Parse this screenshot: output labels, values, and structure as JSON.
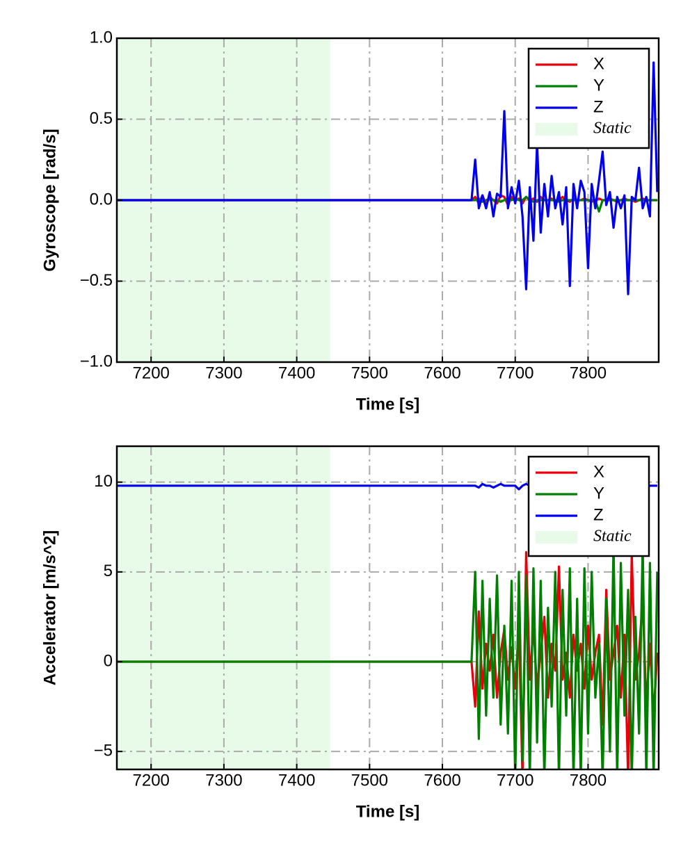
{
  "chart_data": [
    {
      "type": "line",
      "xlabel": "Time [s]",
      "ylabel": "Gyroscope [rad/s]",
      "xlim": [
        7153,
        7897
      ],
      "ylim": [
        -1,
        1
      ],
      "xticks": [
        7200,
        7300,
        7400,
        7500,
        7600,
        7700,
        7800
      ],
      "yticks": [
        {
          "value": -1,
          "label": "−1.0"
        },
        {
          "value": -0.5,
          "label": "−0.5"
        },
        {
          "value": 0,
          "label": "0.0"
        },
        {
          "value": 0.5,
          "label": "0.5"
        },
        {
          "value": 1,
          "label": "1.0"
        }
      ],
      "grid": true,
      "legend": "upper right",
      "static_span": [
        7153,
        7446
      ],
      "static_label": "Static",
      "static_color": "#e8fbe8",
      "x": [
        7153,
        7200,
        7300,
        7400,
        7500,
        7600,
        7640,
        7645,
        7650,
        7655,
        7660,
        7665,
        7670,
        7675,
        7680,
        7685,
        7690,
        7695,
        7700,
        7705,
        7710,
        7715,
        7720,
        7725,
        7730,
        7735,
        7740,
        7745,
        7750,
        7755,
        7760,
        7765,
        7770,
        7775,
        7780,
        7785,
        7790,
        7795,
        7800,
        7805,
        7810,
        7815,
        7820,
        7825,
        7830,
        7835,
        7840,
        7845,
        7850,
        7855,
        7860,
        7865,
        7870,
        7875,
        7880,
        7885,
        7890,
        7895
      ],
      "series": [
        {
          "name": "X",
          "color": "#e8000b",
          "values": [
            0,
            0,
            0,
            0,
            0,
            0,
            0,
            0.02,
            -0.02,
            0.03,
            -0.03,
            0.02,
            0,
            -0.02,
            0.03,
            0.02,
            -0.03,
            0.02,
            0,
            0.01,
            -0.02,
            0.02,
            0,
            0.01,
            -0.01,
            0.02,
            0,
            0,
            0.01,
            -0.01,
            0,
            0.02,
            0,
            -0.01,
            0.01,
            0,
            0,
            0.01,
            0,
            -0.01,
            0,
            0.01,
            0,
            0,
            0.01,
            0,
            -0.01,
            0,
            0.01,
            0,
            0,
            -0.01,
            0,
            0.01,
            0,
            0,
            0,
            0
          ]
        },
        {
          "name": "Y",
          "color": "#007f00",
          "values": [
            0,
            0,
            0,
            0,
            0,
            0,
            0,
            0,
            0.01,
            -0.01,
            0,
            0.01,
            0,
            0,
            -0.01,
            0,
            0.01,
            0,
            0.01,
            0,
            0,
            0.02,
            0,
            -0.01,
            0,
            0,
            0,
            0,
            0,
            0,
            -0.01,
            0,
            0,
            0,
            0,
            0,
            0,
            0,
            0,
            0,
            0,
            -0.07,
            0,
            0,
            0,
            0,
            0,
            0,
            0,
            0,
            0,
            0,
            0,
            0,
            0,
            0,
            0,
            0
          ]
        },
        {
          "name": "Z",
          "color": "#0000ee",
          "values": [
            0,
            0,
            0,
            0,
            0,
            0,
            0,
            0.25,
            -0.05,
            0.03,
            -0.05,
            0.05,
            -0.1,
            0.04,
            0.02,
            0.55,
            -0.05,
            0.08,
            -0.02,
            0.12,
            -0.1,
            -0.55,
            0.08,
            -0.25,
            0.35,
            -0.2,
            0.1,
            -0.1,
            0.15,
            -0.05,
            0.05,
            -0.15,
            0.08,
            -0.53,
            0.1,
            -0.05,
            0.12,
            0.05,
            -0.42,
            0.1,
            -0.05,
            0.12,
            0.3,
            -0.03,
            0.05,
            -0.17,
            0.02,
            -0.05,
            0.03,
            -0.58,
            0.02,
            0,
            0.2,
            -0.05,
            0.02,
            -0.1,
            0.85,
            0.05
          ]
        }
      ]
    },
    {
      "type": "line",
      "xlabel": "Time [s]",
      "ylabel": "Accelerator [m/s^2]",
      "xlim": [
        7153,
        7897
      ],
      "ylim": [
        -6,
        12
      ],
      "xticks": [
        7200,
        7300,
        7400,
        7500,
        7600,
        7700,
        7800
      ],
      "yticks": [
        {
          "value": -5,
          "label": "−5"
        },
        0,
        5,
        10
      ],
      "grid": true,
      "legend": "upper right",
      "static_span": [
        7153,
        7446
      ],
      "static_label": "Static",
      "static_color": "#e8fbe8",
      "x": [
        7153,
        7200,
        7300,
        7400,
        7500,
        7600,
        7640,
        7645,
        7650,
        7655,
        7660,
        7665,
        7670,
        7675,
        7680,
        7685,
        7690,
        7695,
        7700,
        7705,
        7710,
        7715,
        7720,
        7725,
        7730,
        7735,
        7740,
        7745,
        7750,
        7755,
        7760,
        7765,
        7770,
        7775,
        7780,
        7785,
        7790,
        7795,
        7800,
        7805,
        7810,
        7815,
        7820,
        7825,
        7830,
        7835,
        7840,
        7845,
        7850,
        7855,
        7860,
        7865,
        7870,
        7875,
        7880,
        7885,
        7890,
        7895
      ],
      "series": [
        {
          "name": "X",
          "color": "#e8000b",
          "values": [
            0,
            0,
            0,
            0,
            0,
            0,
            0,
            -2.5,
            2.8,
            -1.5,
            1.0,
            -0.5,
            1.5,
            -2.0,
            0.5,
            1.8,
            -1.0,
            0.8,
            -1.5,
            2.0,
            -6.5,
            6.1,
            -1.0,
            2.0,
            -1.5,
            0.5,
            2.5,
            -2.0,
            1.0,
            -0.5,
            5.3,
            -1.0,
            0.5,
            -2.0,
            1.5,
            -0.5,
            1.0,
            -1.5,
            2.0,
            -1.0,
            0.5,
            1.5,
            -3.5,
            4.0,
            -1.0,
            0.5,
            2.0,
            -2.0,
            1.5,
            -6.5,
            6.0,
            -1.0,
            0.5,
            3.5,
            -2.5,
            1.0,
            -3.0,
            0.5
          ]
        },
        {
          "name": "Y",
          "color": "#007f00",
          "values": [
            0,
            0,
            0,
            0,
            0,
            0,
            0,
            5.0,
            -4.3,
            4.5,
            -3.0,
            3.5,
            -2.0,
            4.8,
            -3.5,
            2.0,
            -4.0,
            4.5,
            -6.5,
            5.0,
            -5.5,
            4.8,
            -6.5,
            5.2,
            -4.5,
            4.5,
            -6.5,
            3.0,
            -2.5,
            5.0,
            -6.5,
            4.0,
            -3.0,
            5.2,
            -6.5,
            3.5,
            -6.5,
            5.2,
            -4.0,
            5.0,
            -2.0,
            1.0,
            -6.5,
            3.5,
            -5.0,
            6.5,
            -6.5,
            5.5,
            -3.0,
            4.0,
            -6.5,
            2.5,
            -4.0,
            6.5,
            -6.5,
            5.5,
            -6.5,
            5.0
          ]
        },
        {
          "name": "Z",
          "color": "#0000ee",
          "values": [
            9.8,
            9.8,
            9.8,
            9.8,
            9.8,
            9.8,
            9.8,
            9.8,
            9.7,
            9.9,
            9.8,
            9.8,
            9.7,
            9.8,
            9.9,
            9.8,
            9.8,
            9.8,
            9.8,
            9.6,
            9.8,
            9.9,
            9.8,
            9.8,
            9.7,
            9.8,
            9.8,
            9.8,
            9.8,
            9.8,
            9.7,
            9.8,
            9.8,
            9.8,
            9.9,
            9.8,
            9.8,
            9.8,
            9.8,
            9.8,
            9.8,
            9.8,
            9.7,
            9.8,
            9.8,
            9.8,
            9.8,
            9.8,
            9.8,
            9.8,
            9.8,
            9.8,
            9.8,
            9.8,
            9.8,
            9.8,
            9.8,
            9.8
          ]
        }
      ]
    }
  ]
}
